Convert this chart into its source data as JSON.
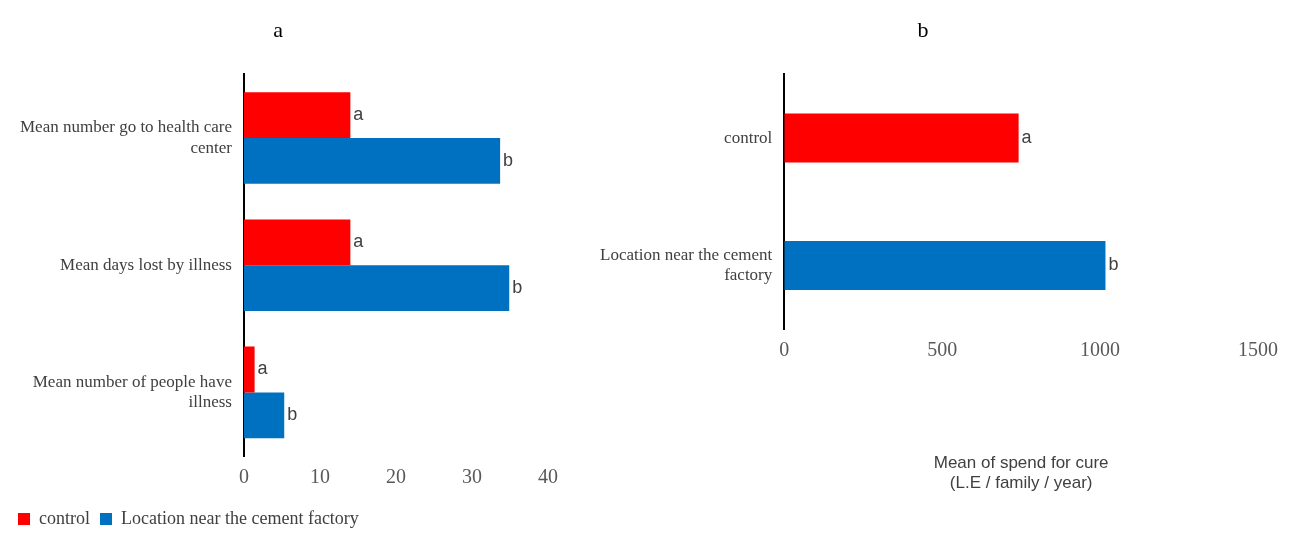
{
  "chart_data": [
    {
      "type": "bar",
      "title": "a",
      "orientation": "horizontal",
      "categories": [
        "Mean number go to health care center",
        "Mean days lost by illness",
        "Mean number of people have illness"
      ],
      "series": [
        {
          "name": "control",
          "color": "#ff0000",
          "values": [
            14,
            14,
            1.4
          ],
          "value_labels": [
            "a",
            "a",
            "a"
          ]
        },
        {
          "name": "Location near the cement factory",
          "color": "#0070c0",
          "values": [
            33.7,
            34.9,
            5.3
          ],
          "value_labels": [
            "b",
            "b",
            "b"
          ]
        }
      ],
      "xlim": [
        0,
        40
      ],
      "xticks": [
        0,
        10,
        20,
        30,
        40
      ],
      "legend": "bottom"
    },
    {
      "type": "bar",
      "title": "b",
      "orientation": "horizontal",
      "categories": [
        "control",
        "Location near the cement factory"
      ],
      "values": [
        742,
        1017
      ],
      "colors": [
        "#ff0000",
        "#0070c0"
      ],
      "value_labels": [
        "a",
        "b"
      ],
      "xlabel": "Mean of spend for cure\n(L.E / family / year)",
      "xlim": [
        0,
        1500
      ],
      "xticks": [
        0,
        500,
        1000,
        1500
      ]
    }
  ]
}
